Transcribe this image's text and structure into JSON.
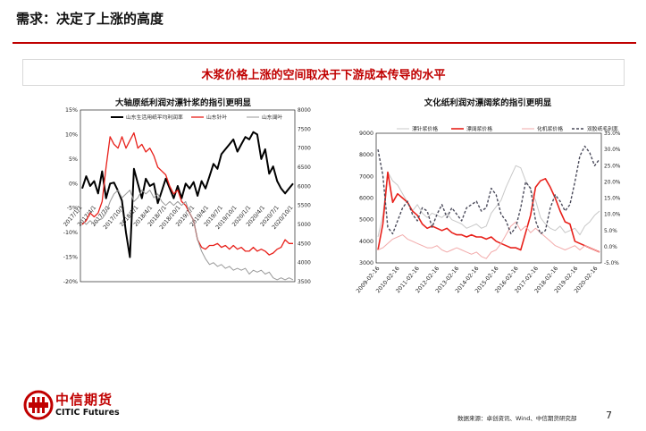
{
  "header": {
    "title": "需求：决定了上涨的高度"
  },
  "banner": {
    "text": "木浆价格上涨的空间取决于下游成本传导的水平"
  },
  "chart_data": [
    {
      "type": "line",
      "title": "大轴原纸利润对漂针浆的指引更明显",
      "x_tick_labels": [
        "2017/1/1",
        "2017/4/1",
        "2017/7/1",
        "2017/10/1",
        "2018/1/1",
        "2018/4/1",
        "2018/7/1",
        "2018/10/1",
        "2019/1/1",
        "2019/4/1",
        "2019/7/1",
        "2019/10/1",
        "2020/1/1",
        "2020/4/1",
        "2020/7/1",
        "2020/10/1"
      ],
      "y_left": {
        "range": [
          -20,
          15
        ],
        "ticks": [
          "15%",
          "10%",
          "5%",
          "0%",
          "-5%",
          "-10%",
          "-15%",
          "-20%"
        ]
      },
      "y_right": {
        "range": [
          3500,
          8000
        ],
        "ticks": [
          "8000",
          "7500",
          "7000",
          "6500",
          "6000",
          "5500",
          "5000",
          "4500",
          "4000",
          "3500"
        ]
      },
      "legend_position": "top",
      "grid": false,
      "series": [
        {
          "name": "山东生活用纸平均利润率",
          "axis": "left",
          "color": "#000000",
          "values": [
            -1,
            1.5,
            -0.5,
            0.5,
            -2,
            2.5,
            -3,
            0,
            0.2,
            -1.5,
            -3.5,
            -10,
            -15,
            3,
            0,
            -3,
            1,
            -0.5,
            0,
            -4,
            -1.5,
            1,
            -1,
            -3,
            -0.5,
            -3,
            0,
            -1,
            0.3,
            -2.5,
            0.5,
            -1,
            1.5,
            4,
            3,
            6,
            7,
            8,
            9,
            6.5,
            8,
            9.5,
            9,
            10.5,
            10,
            5,
            7,
            2,
            3.5,
            0.5,
            -1,
            -2,
            -1,
            0
          ]
        },
        {
          "name": "山东针叶",
          "axis": "right",
          "color": "#e8201a",
          "values": [
            5000,
            5100,
            5300,
            5200,
            5300,
            5600,
            6500,
            7300,
            7100,
            7000,
            7300,
            7000,
            7200,
            7400,
            7000,
            7100,
            6900,
            7000,
            6800,
            6500,
            6400,
            6300,
            6000,
            5800,
            5900,
            5600,
            5500,
            5300,
            5100,
            4600,
            4400,
            4350,
            4450,
            4450,
            4500,
            4400,
            4450,
            4350,
            4450,
            4350,
            4400,
            4300,
            4300,
            4400,
            4300,
            4350,
            4300,
            4200,
            4250,
            4350,
            4400,
            4600,
            4500,
            4500
          ]
        },
        {
          "name": "山东阔叶",
          "axis": "right",
          "color": "#999999",
          "values": [
            5100,
            5000,
            5100,
            5000,
            5100,
            5150,
            5300,
            5600,
            5800,
            5900,
            5700,
            5800,
            5900,
            5600,
            5700,
            5900,
            5800,
            5900,
            5700,
            5800,
            5600,
            5500,
            5600,
            5500,
            5600,
            5500,
            5600,
            5300,
            5100,
            4600,
            4300,
            4100,
            3950,
            4000,
            3900,
            3950,
            3850,
            3900,
            3800,
            3850,
            3800,
            3850,
            3700,
            3800,
            3750,
            3800,
            3700,
            3750,
            3600,
            3550,
            3600,
            3550,
            3600,
            3550
          ]
        }
      ]
    },
    {
      "type": "line",
      "title": "文化纸利润对漂阔浆的指引更明显",
      "x_tick_labels": [
        "2009-02-16",
        "2010-02-16",
        "2011-02-16",
        "2012-02-16",
        "2013-02-16",
        "2014-02-16",
        "2015-02-16",
        "2016-02-16",
        "2017-02-16",
        "2018-02-16",
        "2019-02-16",
        "2020-02-16"
      ],
      "y_left": {
        "range": [
          3000,
          9000
        ],
        "ticks": [
          "9000",
          "8000",
          "7000",
          "6000",
          "5000",
          "4000",
          "3000"
        ]
      },
      "y_right": {
        "range": [
          -5,
          35
        ],
        "ticks": [
          "35.0%",
          "30.0%",
          "25.0%",
          "20.0%",
          "15.0%",
          "10.0%",
          "5.0%",
          "0.0%",
          "-5.0%"
        ]
      },
      "legend_position": "top",
      "grid": false,
      "series": [
        {
          "name": "漂针浆价格",
          "axis": "left",
          "color": "#c8c8c8",
          "values": [
            4200,
            5200,
            7200,
            6800,
            6600,
            6200,
            5800,
            5400,
            5700,
            5300,
            5100,
            5300,
            5200,
            5100,
            5300,
            5000,
            4900,
            4800,
            4600,
            4700,
            4800,
            4600,
            4700,
            5300,
            5600,
            5900,
            6500,
            7000,
            7500,
            7400,
            6800,
            6400,
            5900,
            5100,
            4800,
            4600,
            4500,
            4700,
            4400,
            4500,
            4600,
            4300,
            4700,
            4900,
            5200,
            5400
          ]
        },
        {
          "name": "漂阔浆价格",
          "axis": "left",
          "color": "#e8201a",
          "values": [
            3600,
            4800,
            7200,
            5800,
            6200,
            6000,
            5800,
            5400,
            5200,
            4800,
            4600,
            4700,
            4600,
            4500,
            4600,
            4400,
            4300,
            4300,
            4200,
            4300,
            4200,
            4200,
            4100,
            4200,
            4000,
            3900,
            3800,
            3700,
            3700,
            3600,
            4400,
            5200,
            6500,
            6800,
            6900,
            6500,
            6000,
            5400,
            4900,
            4800,
            4000,
            3900,
            3800,
            3700,
            3600,
            3500
          ]
        },
        {
          "name": "化机浆价格",
          "axis": "left",
          "color": "#f2aaaa",
          "values": [
            3600,
            3700,
            3900,
            4100,
            4200,
            4300,
            4100,
            4000,
            3900,
            3800,
            3700,
            3700,
            3800,
            3600,
            3500,
            3600,
            3700,
            3600,
            3500,
            3400,
            3500,
            3300,
            3200,
            3500,
            3600,
            3900,
            4300,
            4700,
            4900,
            4500,
            4700,
            4400,
            4600,
            4400,
            4200,
            4000,
            3800,
            3700,
            3600,
            3700,
            3800,
            3600,
            3800,
            3700,
            3600,
            3500
          ]
        },
        {
          "name": "双胶纸毛利率",
          "axis": "right",
          "color": "#4a4a5a",
          "dash": true,
          "values": [
            30,
            22,
            6,
            4,
            8,
            12,
            14,
            10,
            8,
            12,
            11,
            6,
            10,
            13,
            9,
            12,
            10,
            8,
            12,
            13,
            14,
            11,
            12,
            18,
            16,
            10,
            8,
            4,
            6,
            12,
            20,
            18,
            8,
            4,
            5,
            12,
            16,
            14,
            11,
            13,
            20,
            28,
            31,
            29,
            25,
            27
          ]
        }
      ]
    }
  ],
  "footer": {
    "logo_cn": "中信期货",
    "logo_en": "CITIC Futures",
    "source": "数据来源：卓创资讯、Wind、中信期货研究部",
    "page": "7"
  }
}
